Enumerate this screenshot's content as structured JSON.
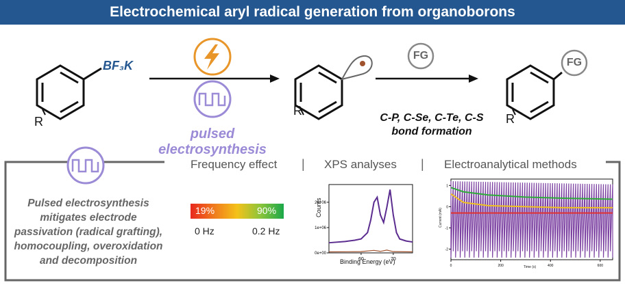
{
  "header": {
    "title": "Electrochemical aryl radical generation from organoborons"
  },
  "scheme": {
    "reagent_label": "BF₃K",
    "substituent": "R",
    "fg_label": "FG",
    "pulsed_label": "pulsed electrosynthesis",
    "bond_line1": "C-P, C-Se, C-Te, C-S",
    "bond_line2": "bond formation"
  },
  "sections": {
    "frequency": "Frequency effect",
    "xps": "XPS analyses",
    "electro": "Electroanalytical methods",
    "separator": "|"
  },
  "summary": {
    "lines": [
      "Pulsed electrosynthesis",
      "mitigates electrode",
      "passivation (radical grafting),",
      "homocoupling, overoxidation",
      "and decomposition"
    ]
  },
  "frequency": {
    "left_pct": "19%",
    "right_pct": "90%",
    "left_hz": "0 Hz",
    "right_hz": "0.2 Hz"
  },
  "chart_data": [
    {
      "type": "line",
      "title": "",
      "xlabel": "Binding Energy (eV)",
      "ylabel": "Counts",
      "x_ticks": [
        "60",
        "70"
      ],
      "y_ticks": [
        "0e+00",
        "1e+06",
        "2e+06"
      ],
      "series": [
        {
          "color": "#5b2c8f",
          "x": [
            50,
            55,
            58,
            60,
            62,
            63,
            64,
            65,
            66,
            67,
            68,
            69,
            70,
            71,
            72,
            74,
            76
          ],
          "y": [
            400000,
            450000,
            500000,
            550000,
            800000,
            1300000,
            2000000,
            2200000,
            1500000,
            1200000,
            1800000,
            2500000,
            1500000,
            800000,
            550000,
            470000,
            430000
          ]
        },
        {
          "color": "#a0522d",
          "x": [
            50,
            60,
            64,
            66,
            68,
            70,
            76
          ],
          "y": [
            40000,
            50000,
            100000,
            60000,
            110000,
            50000,
            40000
          ]
        }
      ]
    },
    {
      "type": "line",
      "title": "",
      "xlabel": "Time (s)",
      "ylabel": "Current (mA)",
      "x_ticks": [
        "0",
        "200",
        "400",
        "600"
      ],
      "y_ticks": [
        "1",
        "0",
        "-1",
        "-2"
      ],
      "series": [
        {
          "color": "#7a3fa0",
          "description_of_envelope": "pulsed",
          "x": [
            0,
            650
          ],
          "y": [
            1.2,
            -2.4
          ]
        },
        {
          "color": "#f0c020",
          "x": [
            0,
            50,
            150,
            300,
            450,
            650
          ],
          "y": [
            0.6,
            0.2,
            0.05,
            0.0,
            -0.05,
            -0.05
          ]
        },
        {
          "color": "#2eaa3a",
          "x": [
            0,
            50,
            150,
            300,
            450,
            650
          ],
          "y": [
            0.9,
            0.7,
            0.55,
            0.45,
            0.4,
            0.35
          ]
        },
        {
          "color": "#e03030",
          "x": [
            0,
            650
          ],
          "y": [
            -0.3,
            -0.3
          ]
        }
      ]
    }
  ],
  "colors": {
    "banner": "#24578f",
    "accent_purple": "#9b8ad6",
    "accent_orange": "#e8962a",
    "frame_gray": "#666666"
  },
  "icons": {
    "lightning": "lightning-icon",
    "pulse": "square-wave-icon",
    "radical": "radical-orbital-icon"
  }
}
